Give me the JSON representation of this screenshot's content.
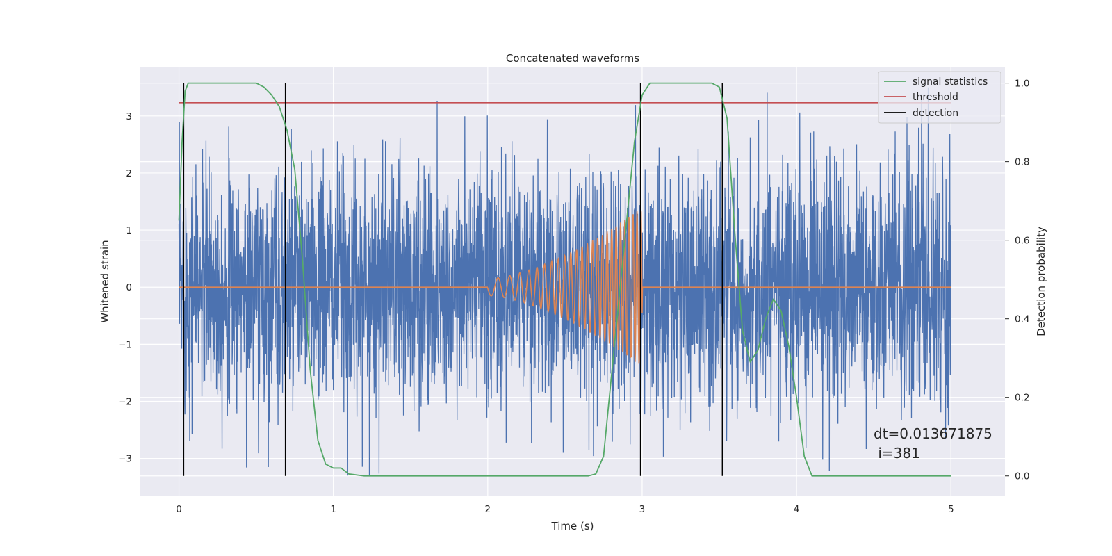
{
  "chart_data": {
    "type": "line",
    "title": "Concatenated waveforms",
    "xlabel": "Time (s)",
    "ylabel": "Whitened strain",
    "ylabel_right": "Detection probability",
    "xlim": [
      -0.25,
      5.35
    ],
    "ylim": [
      -3.65,
      3.85
    ],
    "ylim_right": [
      -0.05,
      1.04
    ],
    "xticks": [
      0,
      1,
      2,
      3,
      4,
      5
    ],
    "xtick_labels": [
      "0",
      "1",
      "2",
      "3",
      "4",
      "5"
    ],
    "yticks": [
      -3,
      -2,
      -1,
      0,
      1,
      2,
      3
    ],
    "ytick_labels": [
      "−3",
      "−2",
      "−1",
      "0",
      "1",
      "2",
      "3"
    ],
    "yticks_right": [
      0.0,
      0.2,
      0.4,
      0.6,
      0.8,
      1.0
    ],
    "ytick_labels_right": [
      "0.0",
      "0.2",
      "0.4",
      "0.6",
      "0.8",
      "1.0"
    ],
    "grid": true,
    "legend": {
      "placement": "top-right",
      "entries": [
        {
          "label": "signal statistics",
          "color": "#55a868"
        },
        {
          "label": "threshold",
          "color": "#c44e52"
        },
        {
          "label": "detection",
          "color": "#000000"
        }
      ]
    },
    "series": [
      {
        "role": "noisy-strain",
        "axis": "left",
        "color": "#4c72b0",
        "x_range": [
          0,
          5
        ],
        "typical_amplitude": 1.7,
        "peak_max": 3.5,
        "peak_min": -3.3
      },
      {
        "role": "injected-chirp",
        "axis": "left",
        "color": "#dd8452",
        "zero_until": 2.0,
        "chirp_start": 2.0,
        "chirp_end": 3.0,
        "amplitude_start": 0.15,
        "amplitude_end": 1.4,
        "frequency_start_hz": 10,
        "frequency_end_hz": 40
      },
      {
        "name": "signal statistics",
        "axis": "right",
        "color": "#55a868",
        "x": [
          0,
          0.02,
          0.04,
          0.06,
          0.1,
          0.15,
          0.3,
          0.5,
          0.55,
          0.6,
          0.65,
          0.7,
          0.75,
          0.8,
          0.85,
          0.9,
          0.95,
          1.0,
          1.05,
          1.1,
          1.2,
          1.5,
          2.0,
          2.5,
          2.65,
          2.7,
          2.75,
          2.8,
          2.85,
          2.9,
          2.95,
          3.0,
          3.05,
          3.1,
          3.3,
          3.45,
          3.5,
          3.55,
          3.6,
          3.65,
          3.7,
          3.75,
          3.8,
          3.85,
          3.9,
          3.95,
          4.0,
          4.05,
          4.1,
          4.3,
          4.5,
          4.7,
          5.0
        ],
        "y": [
          0.65,
          0.85,
          0.98,
          1.0,
          1.0,
          1.0,
          1.0,
          1.0,
          0.99,
          0.97,
          0.94,
          0.88,
          0.78,
          0.55,
          0.27,
          0.09,
          0.03,
          0.02,
          0.02,
          0.005,
          0.0,
          0.0,
          0.0,
          0.0,
          0.0,
          0.005,
          0.05,
          0.25,
          0.45,
          0.65,
          0.85,
          0.97,
          1.0,
          1.0,
          1.0,
          1.0,
          0.99,
          0.91,
          0.62,
          0.37,
          0.29,
          0.32,
          0.4,
          0.45,
          0.42,
          0.33,
          0.2,
          0.05,
          0.0,
          0.0,
          0.0,
          0.0,
          0.0
        ]
      },
      {
        "name": "threshold",
        "axis": "right",
        "color": "#c44e52",
        "x": [
          0,
          5
        ],
        "y": [
          0.95,
          0.95
        ]
      }
    ],
    "detections": {
      "name": "detection",
      "color": "#000000",
      "x": [
        0.03,
        0.69,
        2.99,
        3.52
      ]
    },
    "annotation": "dt=0.013671875\n i=381",
    "annotation_lines": [
      "dt=0.013671875",
      " i=381"
    ]
  }
}
